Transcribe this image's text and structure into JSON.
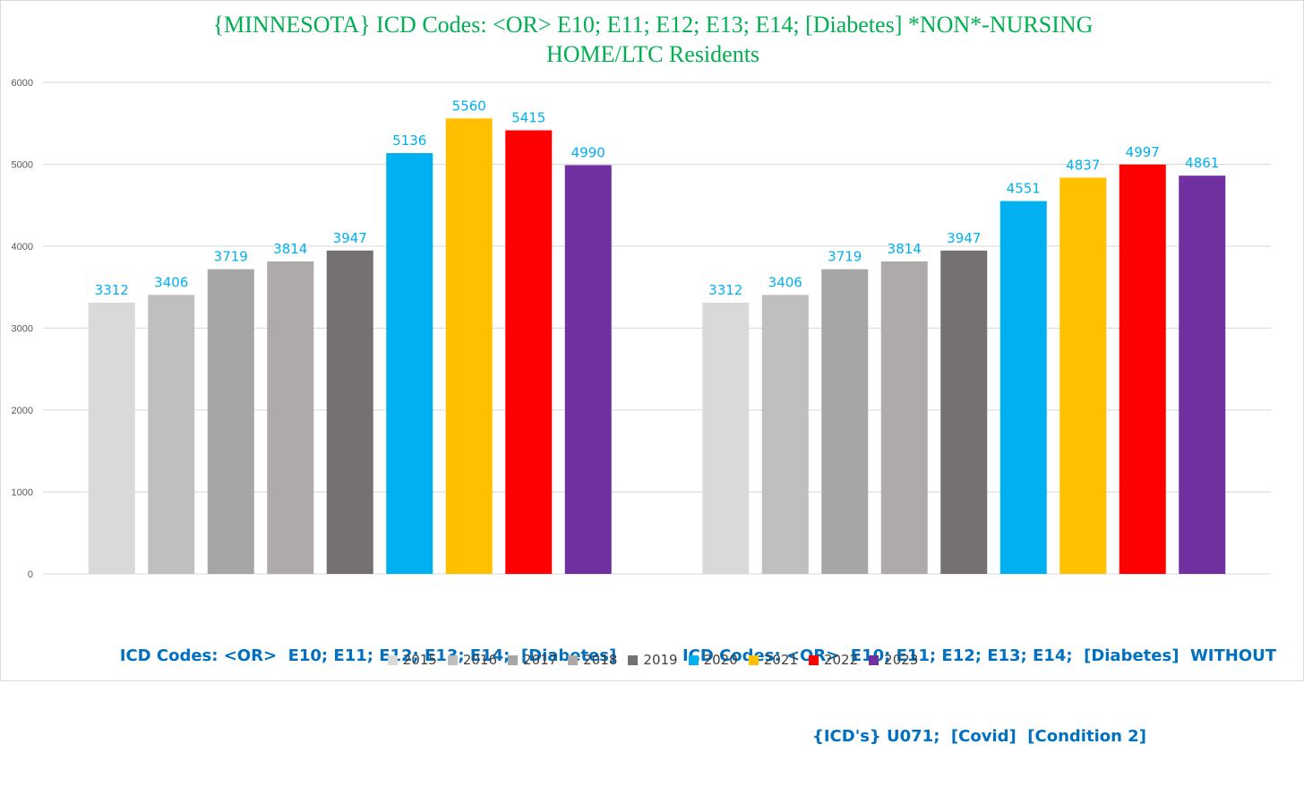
{
  "chart_data": {
    "type": "bar",
    "title": "{MINNESOTA}  ICD Codes: <OR>  E10; E11; E12; E13; E14;  [Diabetes] *NON*-NURSING HOME/LTC Residents",
    "title_lines": [
      "{MINNESOTA}  ICD Codes: <OR>  E10; E11; E12; E13; E14;  [Diabetes] *NON*-NURSING",
      "HOME/LTC Residents"
    ],
    "categories": [
      "ICD Codes: <OR>  E10; E11; E12; E13; E14;  [Diabetes]",
      "ICD Codes: <OR>  E10; E11; E12; E13; E14;  [Diabetes]  WITHOUT {ICD's} U071;  [Covid]  [Condition 2]"
    ],
    "category_lines": [
      [
        "ICD Codes: <OR>  E10; E11; E12; E13; E14;  [Diabetes]"
      ],
      [
        "ICD Codes: <OR>  E10; E11; E12; E13; E14;  [Diabetes]  WITHOUT",
        "{ICD's} U071;  [Covid]  [Condition 2]"
      ]
    ],
    "series": [
      {
        "name": "2015",
        "color": "#d9d9d9",
        "values": [
          3312,
          3312
        ]
      },
      {
        "name": "2016",
        "color": "#bfbfbf",
        "values": [
          3406,
          3406
        ]
      },
      {
        "name": "2017",
        "color": "#a6a6a6",
        "values": [
          3719,
          3719
        ]
      },
      {
        "name": "2018",
        "color": "#aeaaaa",
        "values": [
          3814,
          3814
        ]
      },
      {
        "name": "2019",
        "color": "#767171",
        "values": [
          3947,
          3947
        ]
      },
      {
        "name": "2020",
        "color": "#00b0f0",
        "values": [
          5136,
          4551
        ]
      },
      {
        "name": "2021",
        "color": "#ffc000",
        "values": [
          5560,
          4837
        ]
      },
      {
        "name": "2022",
        "color": "#ff0000",
        "values": [
          5415,
          4997
        ]
      },
      {
        "name": "2023",
        "color": "#7030a0",
        "values": [
          4990,
          4861
        ]
      }
    ],
    "ylim": [
      0,
      6000
    ],
    "yticks": [
      0,
      1000,
      2000,
      3000,
      4000,
      5000,
      6000
    ],
    "grid": true,
    "legend_position": "bottom",
    "data_label_color": "#00b0f0",
    "text_colors": {
      "title": "#00b050",
      "category_labels": "#0070c0",
      "axis_ticks": "#595959",
      "legend_text": "#404040"
    }
  }
}
